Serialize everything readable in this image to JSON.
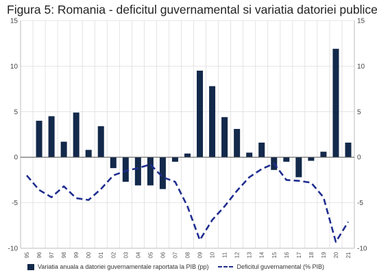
{
  "chart_data": {
    "type": "bar",
    "title": "Figura 5: Romania - deficitul guvernamental si variatia datoriei publice",
    "categories": [
      "95",
      "96",
      "97",
      "98",
      "99",
      "00",
      "01",
      "02",
      "03",
      "04",
      "05",
      "06",
      "07",
      "08",
      "09",
      "10",
      "11",
      "12",
      "13",
      "14",
      "15",
      "16",
      "17",
      "18",
      "19",
      "20",
      "21"
    ],
    "ylim": [
      -10,
      15
    ],
    "yticks": [
      -10,
      -5,
      0,
      5,
      10,
      15
    ],
    "grid": true,
    "legend_position": "bottom",
    "series": [
      {
        "name": "Variatia anuala a datoriei guvernamentale raportata la PIB (pp)",
        "type": "bar",
        "color": "#13294b",
        "values": [
          null,
          4.0,
          4.5,
          1.7,
          4.9,
          0.8,
          3.4,
          -1.2,
          -2.7,
          -3.1,
          -3.1,
          -3.5,
          -0.5,
          0.4,
          9.5,
          7.8,
          4.4,
          3.1,
          0.5,
          1.6,
          -1.4,
          -0.5,
          -2.2,
          -0.4,
          0.6,
          11.9,
          1.6
        ]
      },
      {
        "name": "Deficitul guvernamental (% PIB)",
        "type": "line",
        "style": "dashed",
        "color": "#1f2d8f",
        "values": [
          -2.0,
          -3.6,
          -4.4,
          -3.2,
          -4.5,
          -4.7,
          -3.5,
          -2.0,
          -1.5,
          -1.2,
          -0.8,
          -2.2,
          -2.7,
          -5.4,
          -9.1,
          -6.9,
          -5.4,
          -3.7,
          -2.2,
          -1.3,
          -0.7,
          -2.5,
          -2.6,
          -2.8,
          -4.4,
          -9.3,
          -7.1
        ]
      }
    ]
  }
}
